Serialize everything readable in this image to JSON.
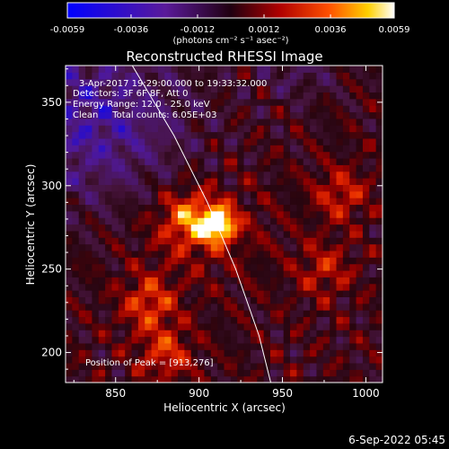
{
  "chart_data": {
    "type": "heatmap",
    "title": "Reconstructed RHESSI Image",
    "xlabel": "Heliocentric X (arcsec)",
    "ylabel": "Heliocentric Y (arcsec)",
    "xlim": [
      820,
      1010
    ],
    "ylim": [
      182,
      372
    ],
    "xticks": [
      850,
      900,
      950,
      1000
    ],
    "xtick_labels": [
      "850",
      "900",
      "950",
      "1000"
    ],
    "yticks": [
      200,
      250,
      300,
      350
    ],
    "ytick_labels": [
      "200",
      "250",
      "300",
      "350"
    ],
    "colorbar": {
      "range": [
        -0.0059,
        0.0059
      ],
      "ticks": [
        -0.0059,
        -0.0036,
        -0.0012,
        0.0012,
        0.0036,
        0.0059
      ],
      "tick_labels": [
        "-0.0059",
        "-0.0036",
        "-0.0012",
        "0.0012",
        "0.0036",
        "0.0059"
      ],
      "units": "(photons cm⁻² s⁻¹ asec⁻²)",
      "colormap": "blue-purple-red-yellow-white"
    },
    "annotations": [
      "3-Apr-2017 19:29:00.000 to 19:33:32.000",
      "Detectors: 3F 6F 8F, Att 0",
      "Energy Range: 12.0 - 25.0 keV",
      "Clean     Total counts: 6.05E+03"
    ],
    "peak": {
      "x": 913,
      "y": 276,
      "label": "Position of Peak = [913,276]"
    },
    "limb_curve": {
      "x": [
        860,
        885,
        905,
        922,
        936,
        943
      ],
      "y": [
        372,
        330,
        290,
        250,
        210,
        182
      ]
    },
    "sources": [
      {
        "x": 912,
        "y": 277,
        "level": 1.0
      },
      {
        "x": 895,
        "y": 280,
        "level": 0.6
      },
      {
        "x": 870,
        "y": 230,
        "level": 0.5
      },
      {
        "x": 880,
        "y": 200,
        "level": 0.45
      },
      {
        "x": 985,
        "y": 295,
        "level": 0.4
      },
      {
        "x": 975,
        "y": 250,
        "level": 0.35
      }
    ]
  },
  "footer": {
    "timestamp": "6-Sep-2022 05:45"
  }
}
